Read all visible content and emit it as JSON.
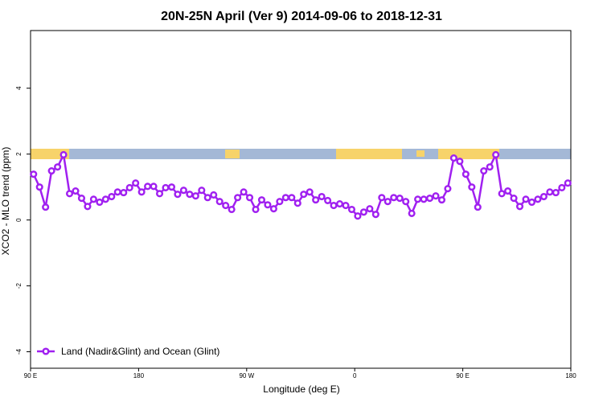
{
  "chart_data": {
    "type": "line",
    "title": "20N-25N April (Ver 9)   2014-09-06 to 2018-12-31",
    "x_label": "Longitude (deg E)",
    "y_label": "XCO2 - MLO trend (ppm)",
    "xlim": [
      90,
      540
    ],
    "ylim": [
      -4.5,
      5.75
    ],
    "xticks": [
      {
        "value": 90,
        "label": "90 E"
      },
      180,
      {
        "value": 270,
        "label": "90 W"
      },
      {
        "value": 360,
        "label": "0"
      },
      {
        "value": 450,
        "label": "90 E"
      },
      {
        "value": 540,
        "label": "180"
      }
    ],
    "yticks": [
      -4,
      -2,
      0,
      2,
      4
    ],
    "legend": "bottom-left",
    "x": [
      92.5,
      97.5,
      102.5,
      107.5,
      112.5,
      117.5,
      122.5,
      127.5,
      132.5,
      137.5,
      142.5,
      147.5,
      152.5,
      157.5,
      162.5,
      167.5,
      172.5,
      177.5,
      182.5,
      187.5,
      192.5,
      197.5,
      202.5,
      207.5,
      212.5,
      217.5,
      222.5,
      227.5,
      232.5,
      237.5,
      242.5,
      247.5,
      252.5,
      257.5,
      262.5,
      267.5,
      272.5,
      277.5,
      282.5,
      287.5,
      292.5,
      297.5,
      302.5,
      307.5,
      312.5,
      317.5,
      322.5,
      327.5,
      332.5,
      337.5,
      342.5,
      347.5,
      352.5,
      357.5,
      362.5,
      367.5,
      372.5,
      377.5,
      382.5,
      387.5,
      392.5,
      397.5,
      402.5,
      407.5,
      412.5,
      417.5,
      422.5,
      427.5,
      432.5,
      437.5,
      442.5,
      447.5,
      452.5,
      457.5,
      462.5,
      467.5,
      472.5,
      477.5,
      482.5,
      487.5,
      492.5,
      497.5,
      502.5,
      507.5,
      512.5,
      517.5,
      522.5,
      527.5,
      532.5,
      537.5
    ],
    "series": [
      {
        "name": "Land (Nadir&Glint) and Ocean (Glint)",
        "color": "#a020f0",
        "values": [
          1.39,
          1.0,
          0.39,
          1.49,
          1.61,
          1.98,
          0.8,
          0.88,
          0.66,
          0.41,
          0.63,
          0.54,
          0.63,
          0.71,
          0.85,
          0.83,
          0.98,
          1.12,
          0.85,
          1.02,
          1.02,
          0.8,
          0.98,
          1.0,
          0.78,
          0.9,
          0.78,
          0.73,
          0.9,
          0.68,
          0.76,
          0.56,
          0.44,
          0.32,
          0.68,
          0.85,
          0.68,
          0.32,
          0.61,
          0.46,
          0.34,
          0.56,
          0.68,
          0.68,
          0.51,
          0.78,
          0.85,
          0.61,
          0.71,
          0.59,
          0.44,
          0.49,
          0.44,
          0.32,
          0.12,
          0.24,
          0.34,
          0.17,
          0.68,
          0.56,
          0.68,
          0.66,
          0.56,
          0.2,
          0.63,
          0.63,
          0.66,
          0.73,
          0.61,
          0.95,
          1.88,
          1.78,
          1.39,
          1.0,
          0.39,
          1.49,
          1.61,
          1.98,
          0.8,
          0.88,
          0.66,
          0.41,
          0.63,
          0.54,
          0.63,
          0.71,
          0.85,
          0.83,
          0.98,
          1.12
        ]
      }
    ]
  }
}
